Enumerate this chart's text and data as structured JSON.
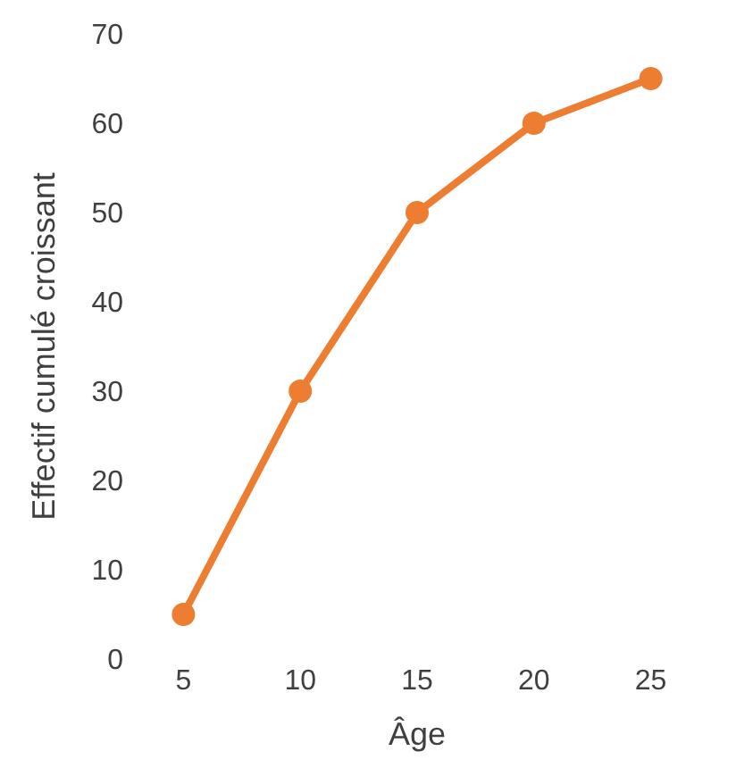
{
  "chart_data": {
    "type": "line",
    "xlabel": "Âge",
    "ylabel": "Effectif cumulé croissant",
    "categories": [
      "5",
      "10",
      "15",
      "20",
      "25"
    ],
    "series": [
      {
        "color": "#ed7d31",
        "values": [
          5,
          30,
          50,
          60,
          65
        ]
      }
    ],
    "ylim": [
      0,
      70
    ],
    "yticks": [
      0,
      10,
      20,
      30,
      40,
      50,
      60,
      70
    ],
    "legend": false,
    "marker": "circle",
    "line_style": "solid"
  }
}
